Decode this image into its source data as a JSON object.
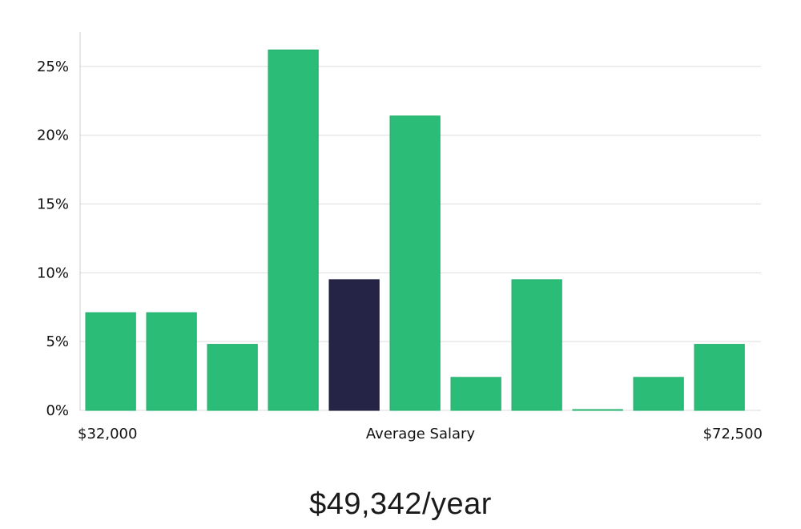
{
  "chart_data": {
    "type": "bar",
    "values": [
      7.1,
      7.1,
      4.8,
      26.2,
      9.5,
      21.4,
      2.4,
      9.5,
      0,
      2.4,
      4.8
    ],
    "highlight_index": 4,
    "y_unit": "%",
    "ylim": [
      0,
      27.5
    ],
    "y_ticks": [
      0,
      5,
      10,
      15,
      20,
      25
    ],
    "y_tick_labels": [
      "0%",
      "5%",
      "10%",
      "15%",
      "20%",
      "25%"
    ],
    "x_label_left": "$32,000",
    "x_label_center": "Average Salary",
    "x_label_right": "$72,500",
    "grid": true,
    "colors": {
      "bar": "#2bbd77",
      "bar_stroke": "#22b06d",
      "highlight": "#262446",
      "grid": "#dddddd",
      "axis": "#cccccc"
    }
  },
  "summary": {
    "salary_text": "$49,342/year"
  }
}
